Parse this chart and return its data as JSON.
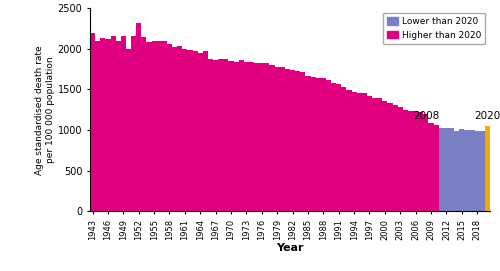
{
  "title": "",
  "ylabel": "Age standardised death rate\nper 100 000 population",
  "xlabel": "Year",
  "ylim": [
    0,
    2500
  ],
  "yticks": [
    0,
    500,
    1000,
    1500,
    2000,
    2500
  ],
  "color_higher": "#E0007F",
  "color_lower": "#7B7FC4",
  "color_2020": "#F5A800",
  "legend_higher": "Higher than 2020",
  "legend_lower": "Lower than 2020",
  "annotation_2008": "2008",
  "annotation_2020": "2020",
  "values": {
    "1943": 2200,
    "1944": 2100,
    "1945": 2130,
    "1946": 2120,
    "1947": 2160,
    "1948": 2100,
    "1949": 2160,
    "1950": 2000,
    "1951": 2160,
    "1952": 2320,
    "1953": 2140,
    "1954": 2080,
    "1955": 2100,
    "1956": 2100,
    "1957": 2090,
    "1958": 2060,
    "1959": 2020,
    "1960": 2040,
    "1961": 2000,
    "1962": 1990,
    "1963": 1970,
    "1964": 1950,
    "1965": 1970,
    "1966": 1870,
    "1967": 1860,
    "1968": 1870,
    "1969": 1870,
    "1970": 1850,
    "1971": 1840,
    "1972": 1860,
    "1973": 1840,
    "1974": 1840,
    "1975": 1830,
    "1976": 1820,
    "1977": 1820,
    "1978": 1800,
    "1979": 1780,
    "1980": 1770,
    "1981": 1750,
    "1982": 1740,
    "1983": 1730,
    "1984": 1710,
    "1985": 1670,
    "1986": 1650,
    "1987": 1640,
    "1988": 1640,
    "1989": 1610,
    "1990": 1580,
    "1991": 1570,
    "1992": 1530,
    "1993": 1490,
    "1994": 1470,
    "1995": 1460,
    "1996": 1450,
    "1997": 1420,
    "1998": 1400,
    "1999": 1390,
    "2000": 1360,
    "2001": 1330,
    "2002": 1310,
    "2003": 1290,
    "2004": 1250,
    "2005": 1240,
    "2006": 1230,
    "2007": 1220,
    "2008": 1200,
    "2009": 1090,
    "2010": 1060,
    "2011": 1020,
    "2012": 1020,
    "2013": 1020,
    "2014": 990,
    "2015": 1010,
    "2016": 1000,
    "2017": 1000,
    "2018": 990,
    "2019": 990,
    "2020": 1050
  },
  "threshold_2020": 1050,
  "figsize": [
    5.0,
    2.71
  ],
  "dpi": 100
}
